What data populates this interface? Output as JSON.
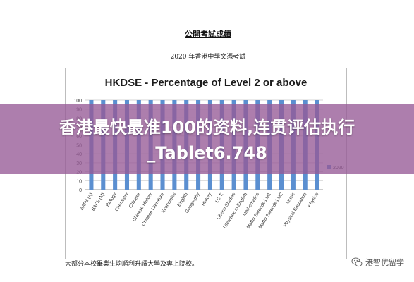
{
  "document": {
    "heading": "公開考試成績",
    "subheading": "2020 年香港中學文憑考試",
    "footer": "大部分本校畢業生均順利升讀大學及專上院校。"
  },
  "banner": {
    "text": "香港最快最准100的资料,连贯评估执行_Tablet6.748"
  },
  "watermark": {
    "text": "港智优留学",
    "icon": "wechat-icon"
  },
  "colors": {
    "bar": "#5b8fd0",
    "banner": "#9a5a9a"
  },
  "chart_data": {
    "type": "bar",
    "title": "HKDSE - Percentage of Level 2 or above",
    "xlabel": "",
    "ylabel": "",
    "ylim": [
      0,
      100
    ],
    "yticks": [
      0,
      10,
      20,
      30,
      40,
      50,
      60,
      70,
      80,
      90,
      100
    ],
    "grid": true,
    "legend_position": "right",
    "categories": [
      "BAFS (A)",
      "BAFS (M)",
      "Biology",
      "Chemistry",
      "Chinese",
      "Chinese History",
      "Chinese Literature",
      "Economics",
      "English",
      "Geography",
      "History",
      "I.C.T.",
      "Liberal Studies",
      "Literature in English",
      "Mathematics",
      "Maths Extended M1",
      "Maths Extended M2",
      "Music",
      "Physical Education",
      "Physics"
    ],
    "series": [
      {
        "name": "2020",
        "color": "#5b8fd0",
        "values": [
          100,
          100,
          100,
          100,
          100,
          100,
          100,
          100,
          100,
          100,
          100,
          100,
          100,
          100,
          100,
          100,
          100,
          100,
          100,
          100
        ]
      }
    ]
  }
}
